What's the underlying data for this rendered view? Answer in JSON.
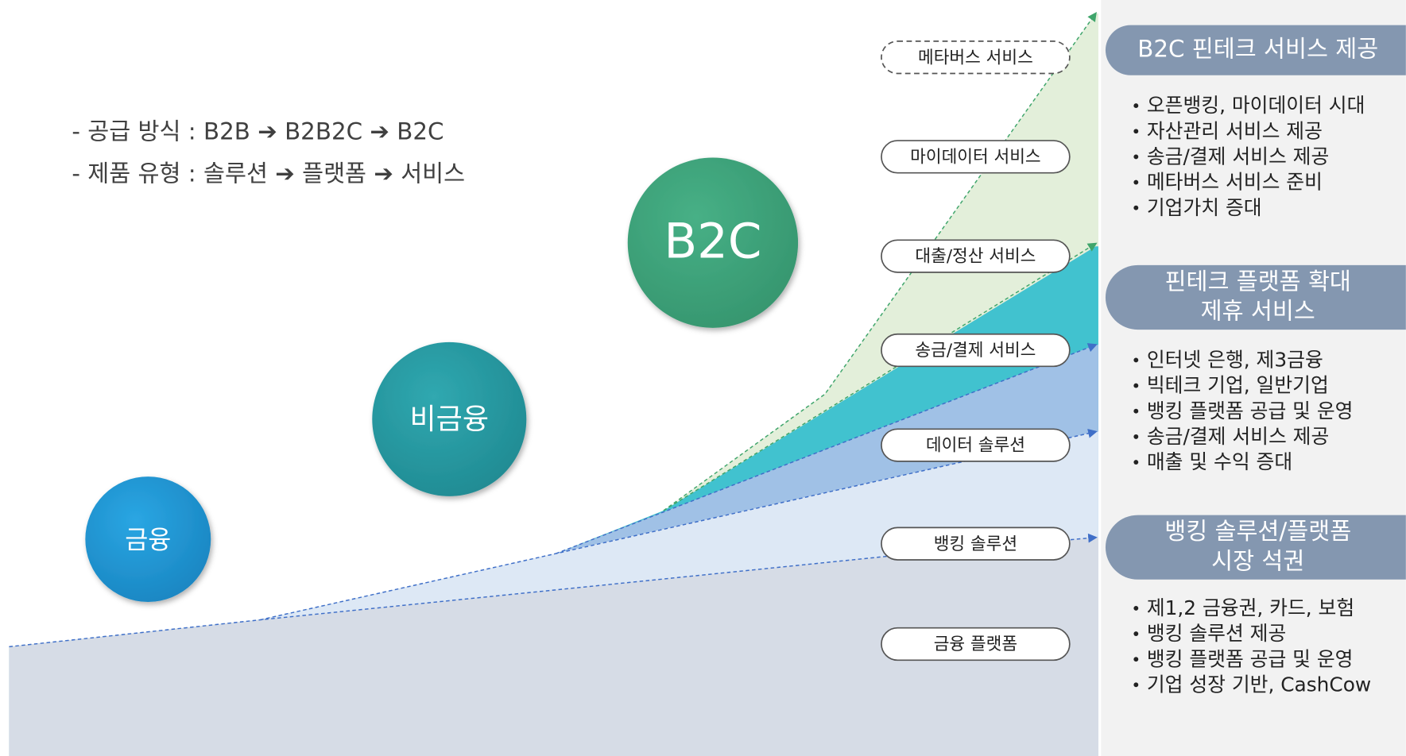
{
  "notes": [
    "- 공급 방식 : B2B ➔ B2B2C ➔ B2C",
    "- 제품 유형 : 솔루션 ➔ 플랫폼 ➔ 서비스"
  ],
  "circles": [
    {
      "label": "금융"
    },
    {
      "label": "비금융"
    },
    {
      "label": "B2C"
    }
  ],
  "services": [
    "메타버스 서비스",
    "마이데이터 서비스",
    "대출/정산 서비스",
    "송금/결제 서비스",
    "데이터 솔루션",
    "뱅킹 솔루션",
    "금융 플랫폼"
  ],
  "panels": [
    {
      "title_lines": [
        "B2C 핀테크 서비스 제공"
      ],
      "bullets": [
        "오픈뱅킹, 마이데이터 시대",
        "자산관리 서비스 제공",
        "송금/결제 서비스 제공",
        "메타버스 서비스 준비",
        "기업가치 증대"
      ]
    },
    {
      "title_lines": [
        "핀테크 플랫폼  확대",
        "제휴 서비스"
      ],
      "bullets": [
        "인터넷 은행, 제3금융",
        "빅테크 기업, 일반기업",
        "뱅킹 플랫폼 공급 및 운영",
        "송금/결제 서비스 제공",
        "매출 및 수익 증대"
      ]
    },
    {
      "title_lines": [
        "뱅킹 솔루션/플랫폼",
        "시장 석권"
      ],
      "bullets": [
        "제1,2 금융권, 카드, 보험",
        "뱅킹 솔루션 제공",
        "뱅킹 플랫폼 공급 및 운영",
        "기업 성장 기반, CashCow"
      ]
    }
  ]
}
